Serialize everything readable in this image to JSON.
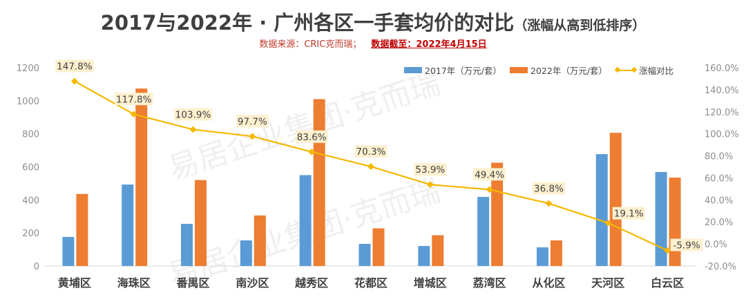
{
  "title": {
    "main": "2017与2022年 · 广州各区一手套均价的对比",
    "paren": "（涨幅从高到低排序）"
  },
  "source": {
    "label": "数据来源：CRIC克而瑞；",
    "cutoff": "数据截至：2022年4月15日"
  },
  "legend": {
    "s2017": "2017年（万元/套）",
    "s2022": "2022年（万元/套）",
    "growth": "涨幅对比"
  },
  "colors": {
    "s2017": "#5b9bd5",
    "s2022": "#ed7d31",
    "growth": "#f5b800",
    "label_bg": "#fdf0cf",
    "axis_text": "#8c8c8c",
    "category_text": "#404040"
  },
  "watermark": "易居企业集团·克而瑞",
  "chart_data": {
    "type": "bar",
    "title": "2017与2022年 · 广州各区一手套均价的对比（涨幅从高到低排序）",
    "subtitle": "数据来源：CRIC克而瑞；数据截至：2022年4月15日",
    "xlabel": "",
    "ylabel": "万元/套",
    "categories": [
      "黄埔区",
      "海珠区",
      "番禺区",
      "南沙区",
      "越秀区",
      "花都区",
      "增城区",
      "荔湾区",
      "从化区",
      "天河区",
      "白云区"
    ],
    "series": [
      {
        "name": "2017年（万元/套）",
        "type": "bar",
        "axis": "left",
        "values": [
          176,
          493,
          255,
          155,
          550,
          134,
          121,
          418,
          113,
          677,
          569
        ]
      },
      {
        "name": "2022年（万元/套）",
        "type": "bar",
        "axis": "left",
        "values": [
          436,
          1074,
          520,
          306,
          1010,
          228,
          186,
          625,
          155,
          806,
          535
        ]
      },
      {
        "name": "涨幅对比",
        "type": "line",
        "axis": "right",
        "values": [
          147.8,
          117.8,
          103.9,
          97.7,
          83.6,
          70.3,
          53.9,
          49.4,
          36.8,
          19.1,
          -5.9
        ],
        "labels": [
          "147.8%",
          "117.8%",
          "103.9%",
          "97.7%",
          "83.6%",
          "70.3%",
          "53.9%",
          "49.4%",
          "36.8%",
          "19.1%",
          "-5.9%"
        ]
      }
    ],
    "ylim": [
      0,
      1200
    ],
    "yticks": [
      "0",
      "200",
      "400",
      "600",
      "800",
      "1000",
      "1200"
    ],
    "y2lim": [
      -20,
      160
    ],
    "y2ticks": [
      "-20.0%",
      "0.0%",
      "20.0%",
      "40.0%",
      "60.0%",
      "80.0%",
      "100.0%",
      "120.0%",
      "140.0%",
      "160.0%"
    ],
    "grid": false,
    "legend_position": "top-right"
  }
}
